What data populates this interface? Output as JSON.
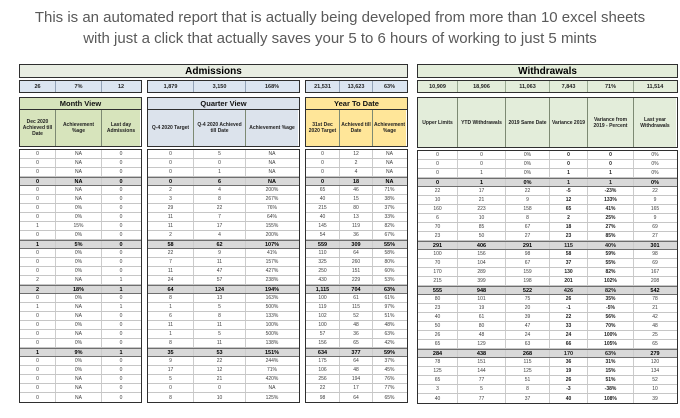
{
  "title": "This is an automated report that is actually being developed from more than 10 excel sheets with just a click that actually saves your 5 to 6 hours of working to just 5 mints",
  "admissions": {
    "header": "Admissions",
    "summary": [
      "26",
      "7%",
      "12",
      "1,879",
      "3,150",
      "168%",
      "21,531",
      "13,623",
      "63%"
    ],
    "groups": [
      {
        "label": "Month View",
        "columns": [
          "Dec 2020 Achieved till Date",
          "Achievement %age",
          "Last day Admissions"
        ]
      },
      {
        "label": "Quarter View",
        "columns": [
          "Q-4 2020 Target",
          "Q-4 2020 Achieved till Date",
          "Achievement %age"
        ]
      },
      {
        "label": "Year To Date",
        "columns": [
          "31st Dec 2020 Target",
          "Achieved till Date",
          "Achievement %age"
        ]
      }
    ]
  },
  "withdrawals": {
    "header": "Withdrawals",
    "summary": [
      "10,909",
      "18,906",
      "11,063",
      "7,843",
      "71%",
      "11,514"
    ],
    "columns": [
      "Upper Limits",
      "YTD Withdrawals",
      "2019 Same Date",
      "Variance 2019",
      "Variance from 2019 - Percent",
      "Last year Withdrawals"
    ]
  },
  "rows": [
    {
      "b": 0,
      "month": [
        "0",
        "NA",
        "0"
      ],
      "quarter": [
        "0",
        "5",
        "NA"
      ],
      "ytd": [
        "0",
        "12",
        "NA"
      ],
      "wd": [
        "0",
        "0",
        "0%",
        "0",
        "0",
        "0%"
      ]
    },
    {
      "b": 0,
      "month": [
        "0",
        "NA",
        "0"
      ],
      "quarter": [
        "0",
        "0",
        "NA"
      ],
      "ytd": [
        "0",
        "2",
        "NA"
      ],
      "wd": [
        "0",
        "0",
        "0%",
        "0",
        "0",
        "0%"
      ]
    },
    {
      "b": 0,
      "month": [
        "0",
        "NA",
        "0"
      ],
      "quarter": [
        "0",
        "1",
        "NA"
      ],
      "ytd": [
        "0",
        "4",
        "NA"
      ],
      "wd": [
        "0",
        "1",
        "0%",
        "1",
        "1",
        "0%"
      ]
    },
    {
      "b": 1,
      "month": [
        "0",
        "NA",
        "0"
      ],
      "quarter": [
        "0",
        "6",
        "NA"
      ],
      "ytd": [
        "0",
        "18",
        "NA"
      ],
      "wd": [
        "0",
        "1",
        "0%",
        "1",
        "1",
        "0%"
      ]
    },
    {
      "b": 0,
      "month": [
        "0",
        "NA",
        "0"
      ],
      "quarter": [
        "2",
        "4",
        "200%"
      ],
      "ytd": [
        "65",
        "46",
        "71%"
      ],
      "wd": [
        "22",
        "17",
        "22",
        "-5",
        "-23%",
        "22"
      ]
    },
    {
      "b": 0,
      "month": [
        "0",
        "NA",
        "0"
      ],
      "quarter": [
        "3",
        "8",
        "267%"
      ],
      "ytd": [
        "40",
        "15",
        "38%"
      ],
      "wd": [
        "10",
        "21",
        "9",
        "12",
        "133%",
        "9"
      ]
    },
    {
      "b": 0,
      "month": [
        "0",
        "0%",
        "0"
      ],
      "quarter": [
        "29",
        "22",
        "76%"
      ],
      "ytd": [
        "215",
        "80",
        "37%"
      ],
      "wd": [
        "160",
        "223",
        "158",
        "65",
        "41%",
        "165"
      ]
    },
    {
      "b": 0,
      "month": [
        "0",
        "0%",
        "0"
      ],
      "quarter": [
        "11",
        "7",
        "64%"
      ],
      "ytd": [
        "40",
        "13",
        "33%"
      ],
      "wd": [
        "6",
        "10",
        "8",
        "2",
        "25%",
        "9"
      ]
    },
    {
      "b": 0,
      "month": [
        "1",
        "15%",
        "0"
      ],
      "quarter": [
        "11",
        "17",
        "155%"
      ],
      "ytd": [
        "145",
        "119",
        "82%"
      ],
      "wd": [
        "70",
        "85",
        "67",
        "18",
        "27%",
        "69"
      ]
    },
    {
      "b": 0,
      "month": [
        "0",
        "0%",
        "0"
      ],
      "quarter": [
        "2",
        "4",
        "200%"
      ],
      "ytd": [
        "54",
        "36",
        "67%"
      ],
      "wd": [
        "23",
        "50",
        "27",
        "23",
        "85%",
        "27"
      ]
    },
    {
      "b": 1,
      "month": [
        "1",
        "5%",
        "0"
      ],
      "quarter": [
        "58",
        "62",
        "107%"
      ],
      "ytd": [
        "559",
        "309",
        "55%"
      ],
      "wd": [
        "291",
        "406",
        "291",
        "115",
        "40%",
        "301"
      ]
    },
    {
      "b": 0,
      "month": [
        "0",
        "0%",
        "0"
      ],
      "quarter": [
        "22",
        "9",
        "41%"
      ],
      "ytd": [
        "110",
        "64",
        "58%"
      ],
      "wd": [
        "100",
        "156",
        "98",
        "58",
        "59%",
        "98"
      ]
    },
    {
      "b": 0,
      "month": [
        "0",
        "0%",
        "0"
      ],
      "quarter": [
        "7",
        "11",
        "157%"
      ],
      "ytd": [
        "325",
        "260",
        "80%"
      ],
      "wd": [
        "70",
        "104",
        "67",
        "37",
        "55%",
        "69"
      ]
    },
    {
      "b": 0,
      "month": [
        "0",
        "0%",
        "0"
      ],
      "quarter": [
        "11",
        "47",
        "427%"
      ],
      "ytd": [
        "250",
        "151",
        "60%"
      ],
      "wd": [
        "170",
        "289",
        "159",
        "130",
        "82%",
        "167"
      ]
    },
    {
      "b": 0,
      "month": [
        "2",
        "NA",
        "1"
      ],
      "quarter": [
        "24",
        "57",
        "238%"
      ],
      "ytd": [
        "430",
        "229",
        "53%"
      ],
      "wd": [
        "215",
        "399",
        "198",
        "201",
        "102%",
        "208"
      ]
    },
    {
      "b": 1,
      "month": [
        "2",
        "18%",
        "1"
      ],
      "quarter": [
        "64",
        "124",
        "194%"
      ],
      "ytd": [
        "1,115",
        "704",
        "63%"
      ],
      "wd": [
        "555",
        "948",
        "522",
        "426",
        "82%",
        "542"
      ]
    },
    {
      "b": 0,
      "month": [
        "0",
        "0%",
        "0"
      ],
      "quarter": [
        "8",
        "13",
        "163%"
      ],
      "ytd": [
        "100",
        "61",
        "61%"
      ],
      "wd": [
        "80",
        "101",
        "75",
        "26",
        "35%",
        "78"
      ]
    },
    {
      "b": 0,
      "month": [
        "1",
        "NA",
        "1"
      ],
      "quarter": [
        "1",
        "5",
        "500%"
      ],
      "ytd": [
        "119",
        "115",
        "97%"
      ],
      "wd": [
        "23",
        "19",
        "20",
        "-1",
        "-5%",
        "21"
      ]
    },
    {
      "b": 0,
      "month": [
        "0",
        "NA",
        "0"
      ],
      "quarter": [
        "6",
        "8",
        "133%"
      ],
      "ytd": [
        "102",
        "52",
        "51%"
      ],
      "wd": [
        "40",
        "61",
        "39",
        "22",
        "56%",
        "42"
      ]
    },
    {
      "b": 0,
      "month": [
        "0",
        "0%",
        "0"
      ],
      "quarter": [
        "11",
        "11",
        "100%"
      ],
      "ytd": [
        "100",
        "48",
        "48%"
      ],
      "wd": [
        "50",
        "80",
        "47",
        "33",
        "70%",
        "48"
      ]
    },
    {
      "b": 0,
      "month": [
        "0",
        "NA",
        "0"
      ],
      "quarter": [
        "1",
        "5",
        "500%"
      ],
      "ytd": [
        "57",
        "36",
        "63%"
      ],
      "wd": [
        "26",
        "48",
        "24",
        "24",
        "100%",
        "25"
      ]
    },
    {
      "b": 0,
      "month": [
        "0",
        "0%",
        "0"
      ],
      "quarter": [
        "8",
        "11",
        "138%"
      ],
      "ytd": [
        "156",
        "65",
        "42%"
      ],
      "wd": [
        "65",
        "129",
        "63",
        "66",
        "105%",
        "65"
      ]
    },
    {
      "b": 1,
      "month": [
        "1",
        "9%",
        "1"
      ],
      "quarter": [
        "35",
        "53",
        "151%"
      ],
      "ytd": [
        "634",
        "377",
        "59%"
      ],
      "wd": [
        "284",
        "438",
        "268",
        "170",
        "63%",
        "279"
      ]
    },
    {
      "b": 0,
      "month": [
        "0",
        "0%",
        "0"
      ],
      "quarter": [
        "9",
        "22",
        "244%"
      ],
      "ytd": [
        "175",
        "64",
        "37%"
      ],
      "wd": [
        "78",
        "151",
        "115",
        "36",
        "31%",
        "120"
      ]
    },
    {
      "b": 0,
      "month": [
        "0",
        "0%",
        "0"
      ],
      "quarter": [
        "17",
        "12",
        "71%"
      ],
      "ytd": [
        "106",
        "48",
        "45%"
      ],
      "wd": [
        "125",
        "144",
        "125",
        "19",
        "15%",
        "134"
      ]
    },
    {
      "b": 0,
      "month": [
        "0",
        "NA",
        "0"
      ],
      "quarter": [
        "5",
        "21",
        "420%"
      ],
      "ytd": [
        "256",
        "194",
        "76%"
      ],
      "wd": [
        "65",
        "77",
        "51",
        "26",
        "51%",
        "52"
      ]
    },
    {
      "b": 0,
      "month": [
        "0",
        "NA",
        "0"
      ],
      "quarter": [
        "0",
        "0",
        "NA"
      ],
      "ytd": [
        "22",
        "17",
        "77%"
      ],
      "wd": [
        "3",
        "5",
        "8",
        "-3",
        "-38%",
        "10"
      ]
    },
    {
      "b": 0,
      "month": [
        "0",
        "NA",
        "0"
      ],
      "quarter": [
        "8",
        "10",
        "125%"
      ],
      "ytd": [
        "98",
        "64",
        "65%"
      ],
      "wd": [
        "40",
        "77",
        "37",
        "40",
        "108%",
        "39"
      ]
    }
  ],
  "colors": {
    "month_green": "#d7e4bc",
    "quarter_gray_blue": "#dce3ec",
    "ytd_yellow": "#ffe699",
    "withdrawals_green": "#e3edda",
    "admissions_summary_blue": "#dbe5f1",
    "subtotal_gray": "#d9d9d9",
    "title_text": "#595959"
  }
}
